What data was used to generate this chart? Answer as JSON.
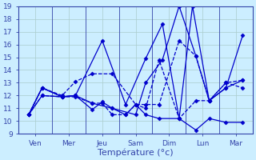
{
  "background_color": "#cceeff",
  "grid_color": "#aacccc",
  "line_color": "#0000cc",
  "xlabel": "Température (°c)",
  "ylim": [
    9,
    19
  ],
  "yticks": [
    9,
    10,
    11,
    12,
    13,
    14,
    15,
    16,
    17,
    18,
    19
  ],
  "days": [
    "Ven",
    "Mer",
    "Jeu",
    "Sam",
    "Dim",
    "Lun",
    "Mar"
  ],
  "day_x": [
    0.5,
    1.5,
    2.5,
    3.5,
    4.5,
    5.5,
    6.5
  ],
  "xlim": [
    0,
    7
  ],
  "lines": [
    {
      "x": [
        0.3,
        0.7,
        1.3,
        1.7,
        2.2,
        2.5,
        2.8,
        3.2,
        3.5,
        3.8,
        4.2,
        4.8,
        5.3,
        5.7,
        6.2,
        6.7
      ],
      "y": [
        10.5,
        12.6,
        11.9,
        12.0,
        10.9,
        11.5,
        11.0,
        10.5,
        11.3,
        10.5,
        10.2,
        10.2,
        9.3,
        10.2,
        9.9,
        9.9
      ],
      "ls": "-"
    },
    {
      "x": [
        0.3,
        0.7,
        1.3,
        1.7,
        2.2,
        2.5,
        2.8,
        3.2,
        3.5,
        3.8,
        4.2,
        4.8,
        5.3,
        5.7,
        6.2,
        6.7
      ],
      "y": [
        10.5,
        12.0,
        11.9,
        11.9,
        11.4,
        11.4,
        10.5,
        10.5,
        11.3,
        11.0,
        14.8,
        10.2,
        11.6,
        11.6,
        13.0,
        12.6
      ],
      "ls": "--"
    },
    {
      "x": [
        0.3,
        0.7,
        1.3,
        1.7,
        2.2,
        2.8,
        3.5,
        3.8,
        4.2,
        4.8,
        5.3,
        5.7,
        6.2,
        6.7
      ],
      "y": [
        10.5,
        12.6,
        12.0,
        13.1,
        13.7,
        13.7,
        11.3,
        11.3,
        11.3,
        16.3,
        15.1,
        11.6,
        13.0,
        13.2
      ],
      "ls": "--"
    },
    {
      "x": [
        0.3,
        0.7,
        1.3,
        1.7,
        2.5,
        3.2,
        3.8,
        4.3,
        4.8,
        5.2,
        5.7,
        6.2,
        6.7
      ],
      "y": [
        10.5,
        12.6,
        11.9,
        12.0,
        16.3,
        11.3,
        14.9,
        17.6,
        10.2,
        19.0,
        11.6,
        12.6,
        13.2
      ],
      "ls": "-"
    },
    {
      "x": [
        0.3,
        0.7,
        1.3,
        1.7,
        2.2,
        2.8,
        3.5,
        3.8,
        4.3,
        4.8,
        5.3,
        5.7,
        6.2,
        6.7
      ],
      "y": [
        10.5,
        12.0,
        11.9,
        12.0,
        11.4,
        11.0,
        10.5,
        13.0,
        14.8,
        19.0,
        15.1,
        11.6,
        12.6,
        16.7
      ],
      "ls": "-"
    }
  ],
  "tick_label_color": "#3344aa",
  "tick_fontsize": 6.5,
  "xlabel_fontsize": 8,
  "spine_color": "#3344aa",
  "marker": "D",
  "markersize": 2.5,
  "linewidth": 0.9
}
